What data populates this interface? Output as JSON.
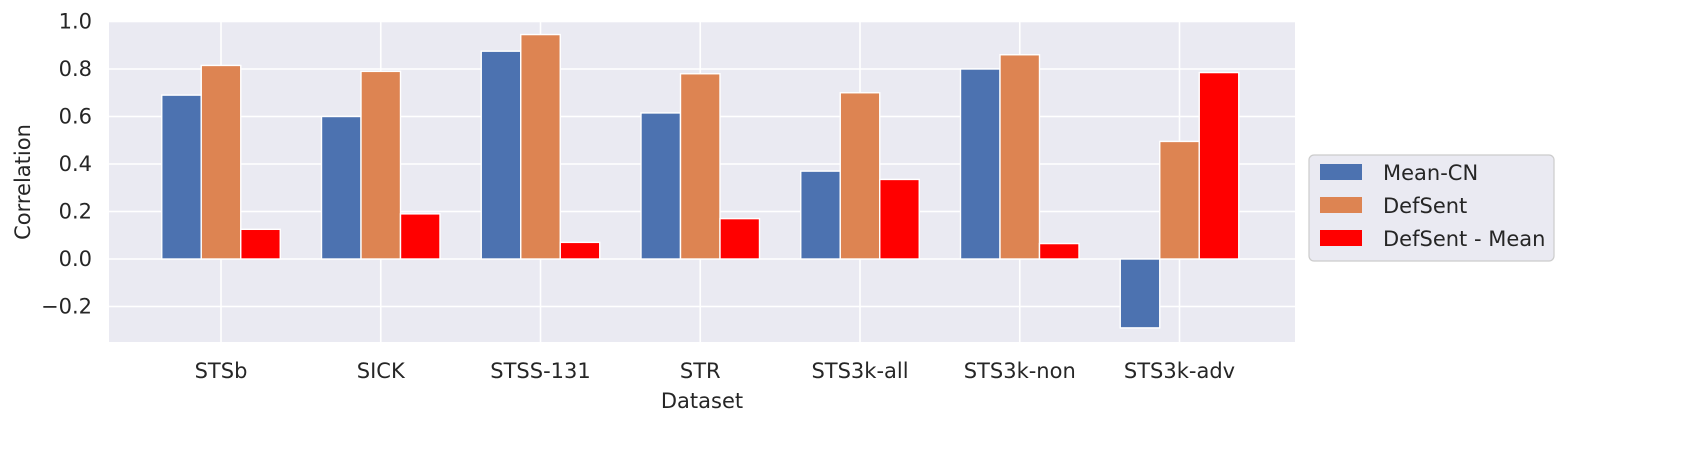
{
  "chart_data": {
    "type": "bar",
    "title": "",
    "xlabel": "Dataset",
    "ylabel": "Correlation",
    "ylim": [
      -0.35,
      1.0
    ],
    "yticks": [
      -0.2,
      0.0,
      0.2,
      0.4,
      0.6,
      0.8,
      1.0
    ],
    "ytick_labels": [
      "−0.2",
      "0.0",
      "0.2",
      "0.4",
      "0.6",
      "0.8",
      "1.0"
    ],
    "grid": true,
    "legend_position": "right",
    "categories": [
      "STSb",
      "SICK",
      "STSS-131",
      "STR",
      "STS3k-all",
      "STS3k-non",
      "STS3k-adv"
    ],
    "series": [
      {
        "name": "Mean-CN",
        "color": "#4c72b0",
        "values": [
          0.69,
          0.6,
          0.875,
          0.615,
          0.37,
          0.8,
          -0.29
        ]
      },
      {
        "name": "DefSent",
        "color": "#dd8452",
        "values": [
          0.815,
          0.79,
          0.945,
          0.78,
          0.7,
          0.86,
          0.495
        ]
      },
      {
        "name": "DefSent - Mean",
        "color": "#ff0000",
        "values": [
          0.125,
          0.19,
          0.07,
          0.17,
          0.335,
          0.065,
          0.785
        ]
      }
    ]
  }
}
